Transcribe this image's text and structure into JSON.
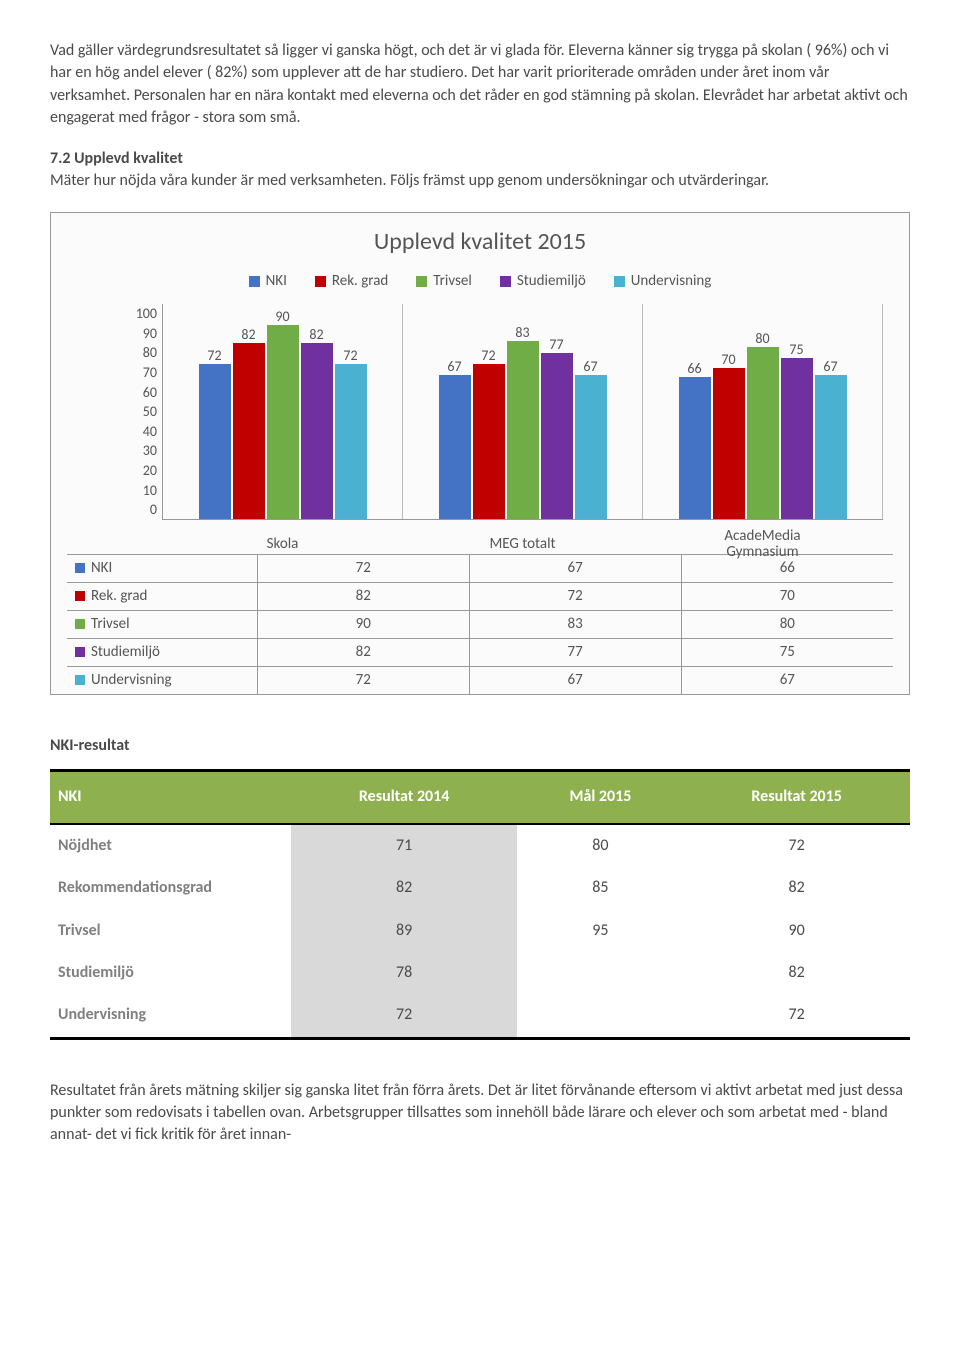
{
  "para1": "Vad gäller värdegrundsresultatet så ligger vi ganska högt, och det är vi glada för. Eleverna känner sig trygga på skolan ( 96%) och vi har en hög andel elever ( 82%) som upplever att de har studiero. Det har varit prioriterade områden under året inom vår verksamhet. Personalen har en nära kontakt med eleverna och det råder en god stämning på skolan. Elevrådet har arbetat aktivt och engagerat med frågor - stora som små.",
  "section72_heading": "7.2 Upplevd kvalitet",
  "section72_body": "Mäter hur nöjda våra kunder är med verksamheten. Följs främst upp genom undersökningar och utvärderingar.",
  "chart": {
    "title": "Upplevd kvalitet 2015",
    "series": [
      {
        "name": "NKI",
        "color": "#4472c4"
      },
      {
        "name": "Rek. grad",
        "color": "#c00000"
      },
      {
        "name": "Trivsel",
        "color": "#70ad47"
      },
      {
        "name": "Studiemiljö",
        "color": "#7030a0"
      },
      {
        "name": "Undervisning",
        "color": "#4ab1d1"
      }
    ],
    "categories": [
      "Skola",
      "MEG totalt",
      "AcadeMedia Gymnasium"
    ],
    "cat2_line1": "AcadeMedia",
    "cat2_line2": "Gymnasium",
    "ymax": 100,
    "yticks": [
      "100",
      "90",
      "80",
      "70",
      "60",
      "50",
      "40",
      "30",
      "20",
      "10",
      "0"
    ],
    "values": [
      [
        72,
        82,
        90,
        82,
        72
      ],
      [
        67,
        72,
        83,
        77,
        67
      ],
      [
        66,
        70,
        80,
        75,
        67
      ]
    ]
  },
  "nki_heading": "NKI-resultat",
  "nki_table": {
    "header_bg": "#8fb04e",
    "columns": [
      "NKI",
      "Resultat 2014",
      "Mål 2015",
      "Resultat 2015"
    ],
    "rows": [
      {
        "label": "Nöjdhet",
        "v": [
          "71",
          "80",
          "72"
        ]
      },
      {
        "label": "Rekommendationsgrad",
        "v": [
          "82",
          "85",
          "82"
        ]
      },
      {
        "label": "Trivsel",
        "v": [
          "89",
          "95",
          "90"
        ]
      },
      {
        "label": "Studiemiljö",
        "v": [
          "78",
          "",
          "82"
        ]
      },
      {
        "label": "Undervisning",
        "v": [
          "72",
          "",
          "72"
        ]
      }
    ]
  },
  "para2": "Resultatet från årets mätning skiljer sig ganska litet från förra årets. Det är litet förvånande eftersom vi aktivt arbetat med just dessa punkter som redovisats i tabellen ovan. Arbetsgrupper tillsattes som innehöll både lärare och elever och som arbetat med - bland annat- det vi fick kritik för året innan-"
}
